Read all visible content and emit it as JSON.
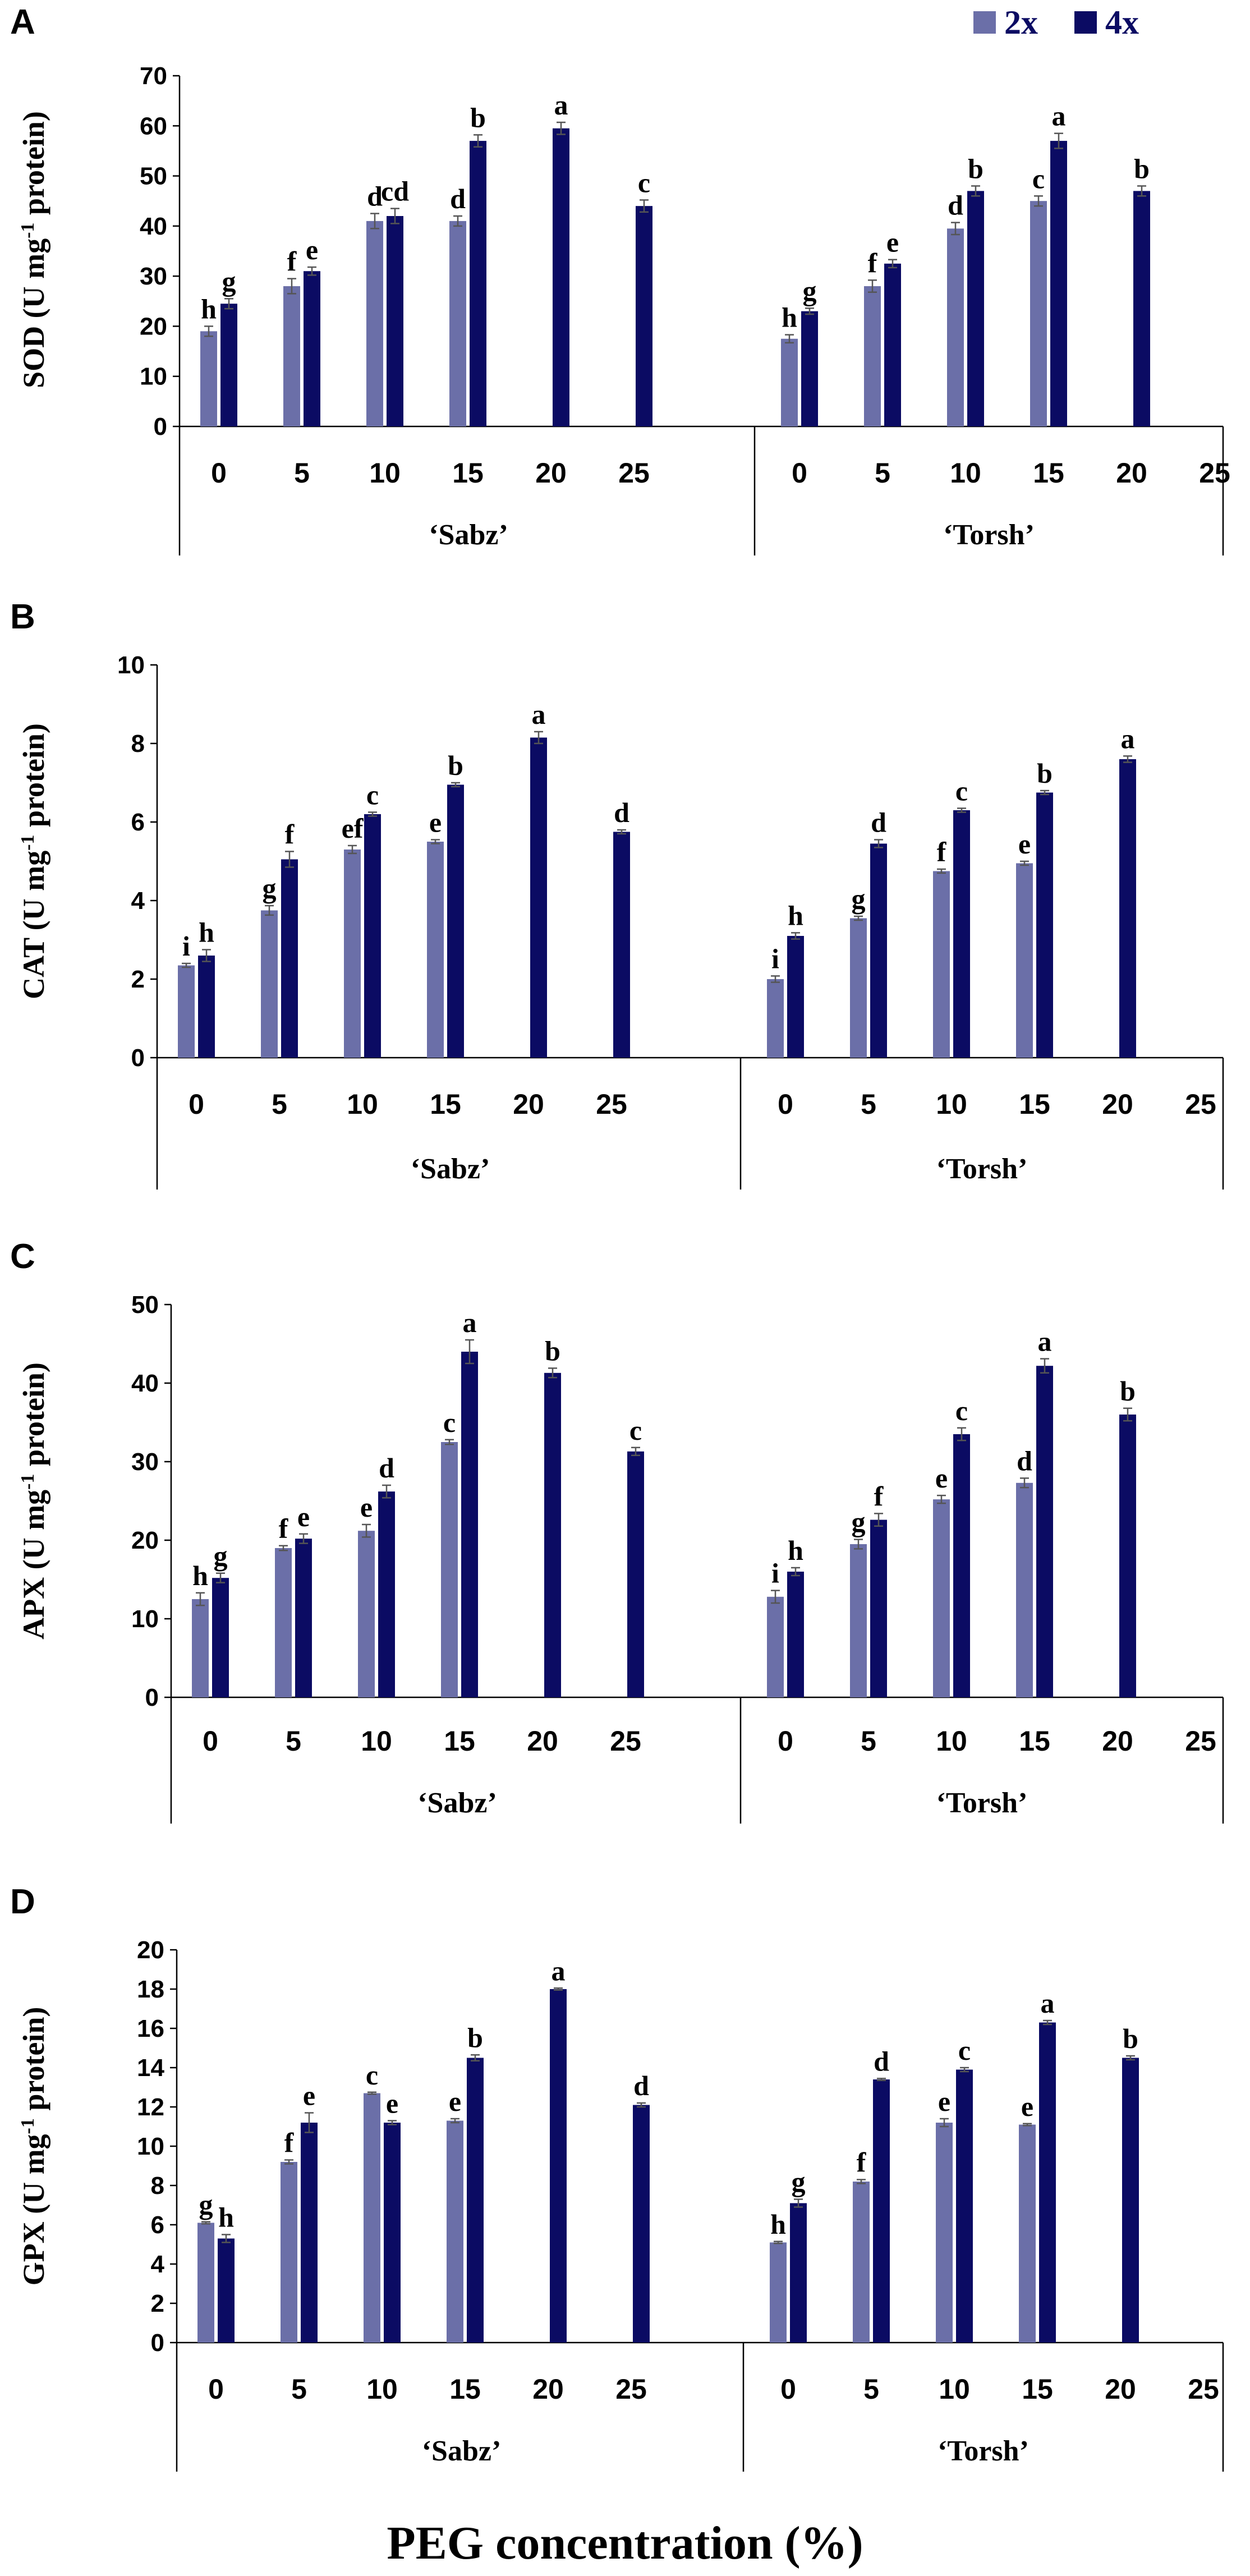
{
  "figure": {
    "xlabel": "PEG concentration (%)",
    "legend": [
      {
        "name": "2x",
        "color": "#6b6fa8"
      },
      {
        "name": "4x",
        "color": "#0b0b63"
      }
    ]
  },
  "chart_data": [
    {
      "type": "bar",
      "panel": "A",
      "ylabel_main": "SOD (U mg",
      "ylabel_sup": "-1",
      "ylabel_end": " protein)",
      "ylim": [
        0,
        70
      ],
      "yticks": [
        "0",
        "10",
        "20",
        "30",
        "40",
        "50",
        "60",
        "70"
      ],
      "yvals": [
        0,
        10,
        20,
        30,
        40,
        50,
        60,
        70
      ],
      "groups": [
        {
          "name": "‘Sabz’",
          "categories": [
            "0",
            "5",
            "10",
            "15",
            "20",
            "25"
          ],
          "series": [
            {
              "name": "2x",
              "values": [
                19,
                28,
                41,
                41,
                null,
                null
              ],
              "errors": [
                1,
                1.5,
                1.5,
                1,
                null,
                null
              ],
              "letters": [
                "h",
                "f",
                "d",
                "d",
                "",
                ""
              ]
            },
            {
              "name": "4x",
              "values": [
                24.5,
                31,
                42,
                57,
                59.5,
                44
              ],
              "errors": [
                1,
                0.8,
                1.5,
                1.2,
                1.2,
                1.2
              ],
              "letters": [
                "g",
                "e",
                "cd",
                "b",
                "a",
                "c"
              ]
            }
          ]
        },
        {
          "name": "‘Torsh’",
          "categories": [
            "0",
            "5",
            "10",
            "15",
            "20",
            "25"
          ],
          "series": [
            {
              "name": "2x",
              "values": [
                17.5,
                28,
                39.5,
                45,
                null,
                null
              ],
              "errors": [
                0.8,
                1.2,
                1.2,
                1,
                null,
                null
              ],
              "letters": [
                "h",
                "f",
                "d",
                "c",
                "",
                ""
              ]
            },
            {
              "name": "4x",
              "values": [
                23,
                32.5,
                47,
                57,
                47,
                null
              ],
              "errors": [
                0.6,
                0.8,
                1,
                1.5,
                1,
                null
              ],
              "letters": [
                "g",
                "e",
                "b",
                "a",
                "b",
                ""
              ]
            }
          ]
        }
      ]
    },
    {
      "type": "bar",
      "panel": "B",
      "ylabel_main": "CAT (U mg",
      "ylabel_sup": "-1",
      "ylabel_end": " protein)",
      "ylim": [
        0,
        10
      ],
      "yticks": [
        "0",
        "2",
        "4",
        "6",
        "8",
        "10"
      ],
      "yvals": [
        0,
        2,
        4,
        6,
        8,
        10
      ],
      "groups": [
        {
          "name": "‘Sabz’",
          "categories": [
            "0",
            "5",
            "10",
            "15",
            "20",
            "25"
          ],
          "series": [
            {
              "name": "2x",
              "values": [
                2.35,
                3.75,
                5.3,
                5.5,
                null,
                null
              ],
              "errors": [
                0.05,
                0.12,
                0.1,
                0.05,
                null,
                null
              ],
              "letters": [
                "i",
                "g",
                "ef",
                "e",
                "",
                ""
              ]
            },
            {
              "name": "4x",
              "values": [
                2.6,
                5.05,
                6.2,
                6.95,
                8.15,
                5.75
              ],
              "errors": [
                0.15,
                0.2,
                0.05,
                0.05,
                0.15,
                0.05
              ],
              "letters": [
                "h",
                "f",
                "c",
                "b",
                "a",
                "d"
              ]
            }
          ]
        },
        {
          "name": "‘Torsh’",
          "categories": [
            "0",
            "5",
            "10",
            "15",
            "20",
            "25"
          ],
          "series": [
            {
              "name": "2x",
              "values": [
                2.0,
                3.55,
                4.75,
                4.95,
                null,
                null
              ],
              "errors": [
                0.08,
                0.05,
                0.05,
                0.05,
                null,
                null
              ],
              "letters": [
                "i",
                "g",
                "f",
                "e",
                "",
                ""
              ]
            },
            {
              "name": "4x",
              "values": [
                3.1,
                5.45,
                6.3,
                6.75,
                7.6,
                null
              ],
              "errors": [
                0.08,
                0.1,
                0.05,
                0.05,
                0.08,
                null
              ],
              "letters": [
                "h",
                "d",
                "c",
                "b",
                "a",
                ""
              ]
            }
          ]
        }
      ]
    },
    {
      "type": "bar",
      "panel": "C",
      "ylabel_main": "APX (U mg",
      "ylabel_sup": "-1",
      "ylabel_end": " protein)",
      "ylim": [
        0,
        50
      ],
      "yticks": [
        "0",
        "10",
        "20",
        "30",
        "40",
        "50"
      ],
      "yvals": [
        0,
        10,
        20,
        30,
        40,
        50
      ],
      "groups": [
        {
          "name": "‘Sabz’",
          "categories": [
            "0",
            "5",
            "10",
            "15",
            "20",
            "25"
          ],
          "series": [
            {
              "name": "2x",
              "values": [
                12.5,
                19,
                21.2,
                32.5,
                null,
                null
              ],
              "errors": [
                0.8,
                0.3,
                0.8,
                0.3,
                null,
                null
              ],
              "letters": [
                "h",
                "f",
                "e",
                "c",
                "",
                ""
              ]
            },
            {
              "name": "4x",
              "values": [
                15.2,
                20.2,
                26.2,
                44,
                41.3,
                31.3
              ],
              "errors": [
                0.6,
                0.6,
                0.8,
                1.5,
                0.6,
                0.5
              ],
              "letters": [
                "g",
                "e",
                "d",
                "a",
                "b",
                "c"
              ]
            }
          ]
        },
        {
          "name": "‘Torsh’",
          "categories": [
            "0",
            "5",
            "10",
            "15",
            "20",
            "25"
          ],
          "series": [
            {
              "name": "2x",
              "values": [
                12.8,
                19.5,
                25.2,
                27.3,
                null,
                null
              ],
              "errors": [
                0.8,
                0.6,
                0.5,
                0.6,
                null,
                null
              ],
              "letters": [
                "i",
                "g",
                "e",
                "d",
                "",
                ""
              ]
            },
            {
              "name": "4x",
              "values": [
                16,
                22.6,
                33.5,
                42.2,
                36,
                null
              ],
              "errors": [
                0.5,
                0.8,
                0.8,
                0.9,
                0.8,
                null
              ],
              "letters": [
                "h",
                "f",
                "c",
                "a",
                "b",
                ""
              ]
            }
          ]
        }
      ]
    },
    {
      "type": "bar",
      "panel": "D",
      "ylabel_main": "GPX (U mg",
      "ylabel_sup": "-1",
      "ylabel_end": " protein)",
      "ylim": [
        0,
        20
      ],
      "yticks": [
        "0",
        "2",
        "4",
        "6",
        "8",
        "10",
        "12",
        "14",
        "16",
        "18",
        "20"
      ],
      "yvals": [
        0,
        2,
        4,
        6,
        8,
        10,
        12,
        14,
        16,
        18,
        20
      ],
      "groups": [
        {
          "name": "‘Sabz’",
          "categories": [
            "0",
            "5",
            "10",
            "15",
            "20",
            "25"
          ],
          "series": [
            {
              "name": "2x",
              "values": [
                6.1,
                9.2,
                12.7,
                11.3,
                null,
                null
              ],
              "errors": [
                0.05,
                0.1,
                0.05,
                0.1,
                null,
                null
              ],
              "letters": [
                "g",
                "f",
                "c",
                "e",
                "",
                ""
              ]
            },
            {
              "name": "4x",
              "values": [
                5.3,
                11.2,
                11.2,
                14.5,
                18,
                12.1
              ],
              "errors": [
                0.2,
                0.5,
                0.1,
                0.15,
                0.05,
                0.1
              ],
              "letters": [
                "h",
                "e",
                "e",
                "b",
                "a",
                "d"
              ]
            }
          ]
        },
        {
          "name": "‘Torsh’",
          "categories": [
            "0",
            "5",
            "10",
            "15",
            "20",
            "25"
          ],
          "series": [
            {
              "name": "2x",
              "values": [
                5.1,
                8.2,
                11.2,
                11.1,
                null,
                null
              ],
              "errors": [
                0.05,
                0.1,
                0.2,
                0.05,
                null,
                null
              ],
              "letters": [
                "h",
                "f",
                "e",
                "e",
                "",
                ""
              ]
            },
            {
              "name": "4x",
              "values": [
                7.1,
                13.4,
                13.9,
                16.3,
                14.5,
                null
              ],
              "errors": [
                0.2,
                0.05,
                0.1,
                0.1,
                0.1,
                null
              ],
              "letters": [
                "g",
                "d",
                "c",
                "a",
                "b",
                ""
              ]
            }
          ]
        }
      ]
    }
  ]
}
